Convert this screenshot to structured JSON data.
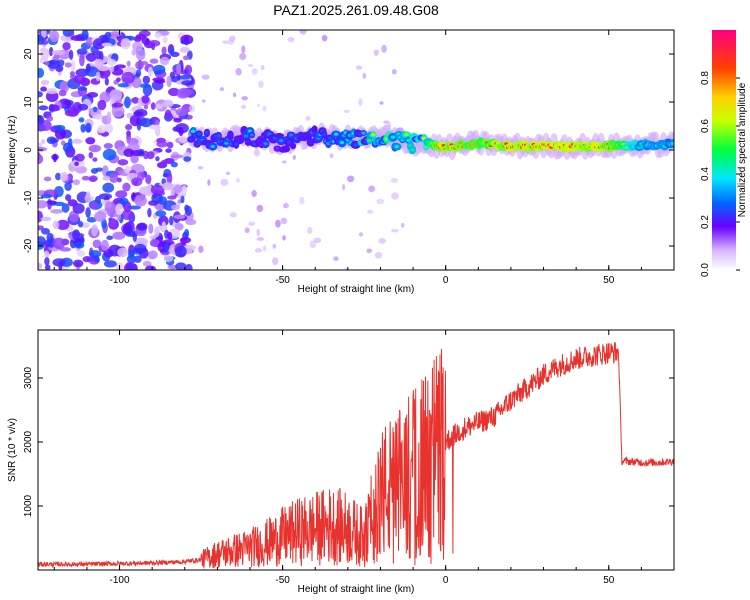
{
  "title": "PAZ1.2025.261.09.48.G08",
  "chart_data": [
    {
      "type": "heatmap",
      "xlabel": "Height of straight line (km)",
      "ylabel": "Frequency (Hz)",
      "xlim": [
        -125,
        70
      ],
      "ylim": [
        -25,
        25
      ],
      "xticks": [
        -100,
        -50,
        0,
        50
      ],
      "yticks": [
        -20,
        -10,
        0,
        10,
        20
      ],
      "colorbar": {
        "label": "Normalized spectral amplitude",
        "range": [
          0.0,
          1.0
        ],
        "ticks": [
          "0.0",
          "0.2",
          "0.4",
          "0.6",
          "0.8"
        ],
        "colormap": "rainbow"
      },
      "description_points": {
        "noise_region_x": [
          -125,
          -78
        ],
        "ridge": {
          "x": [
            -78,
            -70,
            -60,
            -50,
            -40,
            -30,
            -20,
            -10,
            0,
            10,
            20,
            30,
            40,
            50,
            60,
            70
          ],
          "frequency": [
            2.5,
            2.0,
            2.8,
            1.5,
            3.0,
            2.5,
            2.5,
            1.5,
            0.5,
            1.5,
            0.8,
            0.8,
            0.8,
            0.8,
            1.0,
            1.2
          ],
          "peak_amplitude": [
            0.4,
            0.35,
            0.35,
            0.3,
            0.35,
            0.4,
            0.6,
            0.55,
            0.95,
            0.8,
            0.95,
            0.95,
            0.95,
            0.9,
            0.5,
            0.45
          ]
        }
      }
    },
    {
      "type": "line",
      "xlabel": "Height of straight line (km)",
      "ylabel": "SNR (10 * v/v)",
      "xlim": [
        -125,
        70
      ],
      "ylim": [
        0,
        3750
      ],
      "xticks": [
        -100,
        -50,
        0,
        50
      ],
      "yticks": [
        1000,
        2000,
        3000
      ],
      "color": "#e8322e",
      "series": [
        {
          "x": [
            -125,
            -110,
            -100,
            -90,
            -80,
            -75,
            -70,
            -65,
            -60,
            -55,
            -50,
            -45,
            -40,
            -35,
            -30,
            -25,
            -22,
            -20,
            -15,
            -10,
            -5,
            0,
            5,
            10,
            15,
            20,
            25,
            30,
            35,
            40,
            45,
            50,
            53,
            54,
            55,
            60,
            65,
            70
          ],
          "values": [
            90,
            90,
            100,
            110,
            130,
            160,
            250,
            300,
            350,
            420,
            520,
            600,
            650,
            700,
            650,
            500,
            900,
            1200,
            1300,
            1500,
            1700,
            2000,
            2200,
            2300,
            2400,
            2650,
            2850,
            3050,
            3200,
            3300,
            3350,
            3400,
            3400,
            1700,
            1700,
            1680,
            1680,
            1700
          ]
        }
      ]
    }
  ]
}
